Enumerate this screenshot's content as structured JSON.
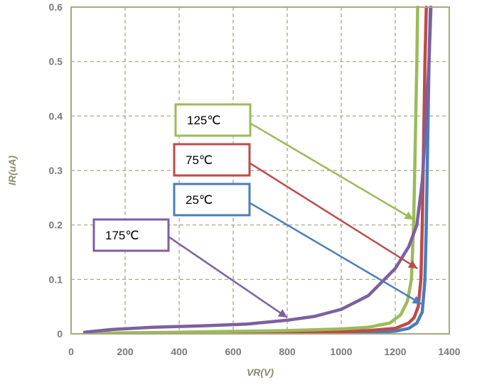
{
  "chart_data": {
    "type": "line",
    "xlabel": "VR(V)",
    "ylabel": "IR(uA)",
    "xlim": [
      0,
      1400
    ],
    "ylim": [
      0,
      0.6
    ],
    "x_ticks": [
      0,
      200,
      400,
      600,
      800,
      1000,
      1200,
      1400
    ],
    "y_ticks": [
      0,
      0.1,
      0.2,
      0.3,
      0.4,
      0.5,
      0.6
    ],
    "x_tick_labels": [
      "0",
      "200",
      "400",
      "600",
      "800",
      "1000",
      "1200",
      "1400"
    ],
    "y_tick_labels": [
      "0",
      "0.1",
      "0.2",
      "0.3",
      "0.4",
      "0.5",
      "0.6"
    ],
    "grid": true,
    "series": [
      {
        "name": "25℃",
        "color": "#4a7ebb",
        "x": [
          50,
          400,
          800,
          1000,
          1100,
          1200,
          1250,
          1280,
          1300,
          1310,
          1315,
          1320,
          1325,
          1330
        ],
        "y": [
          0,
          0,
          0,
          0.001,
          0.002,
          0.005,
          0.01,
          0.02,
          0.04,
          0.1,
          0.2,
          0.35,
          0.5,
          0.6
        ]
      },
      {
        "name": "75℃",
        "color": "#be4b48",
        "x": [
          50,
          400,
          800,
          1000,
          1100,
          1200,
          1250,
          1270,
          1285,
          1295,
          1300,
          1305,
          1310,
          1315
        ],
        "y": [
          0,
          0.001,
          0.002,
          0.004,
          0.006,
          0.01,
          0.02,
          0.03,
          0.05,
          0.1,
          0.2,
          0.35,
          0.5,
          0.6
        ]
      },
      {
        "name": "125℃",
        "color": "#9bbb59",
        "x": [
          50,
          400,
          800,
          1000,
          1100,
          1180,
          1220,
          1245,
          1260,
          1268,
          1272,
          1276,
          1280,
          1283
        ],
        "y": [
          0.001,
          0.003,
          0.006,
          0.009,
          0.012,
          0.02,
          0.035,
          0.06,
          0.1,
          0.2,
          0.3,
          0.4,
          0.5,
          0.6
        ]
      },
      {
        "name": "175℃",
        "color": "#7d60a0",
        "x": [
          50,
          150,
          300,
          500,
          650,
          800,
          900,
          1000,
          1100,
          1200,
          1250,
          1280,
          1300,
          1315,
          1325,
          1332
        ],
        "y": [
          0.003,
          0.008,
          0.012,
          0.015,
          0.018,
          0.025,
          0.032,
          0.045,
          0.07,
          0.12,
          0.16,
          0.2,
          0.28,
          0.4,
          0.5,
          0.6
        ]
      }
    ],
    "annotations": [
      {
        "label": "125℃",
        "series": "125℃",
        "point_to": [
          1268,
          0.21
        ]
      },
      {
        "label": "75℃",
        "series": "75℃",
        "point_to": [
          1282,
          0.12
        ]
      },
      {
        "label": "25℃",
        "series": "25℃",
        "point_to": [
          1297,
          0.055
        ]
      },
      {
        "label": "175℃",
        "series": "175℃",
        "point_to": [
          800,
          0.03
        ]
      }
    ]
  },
  "colors": {
    "plot_border": "#a8a882",
    "grid": "#a0a07a",
    "tick_text": "#7a7a7a",
    "axis_title": "#8a8a6a"
  }
}
